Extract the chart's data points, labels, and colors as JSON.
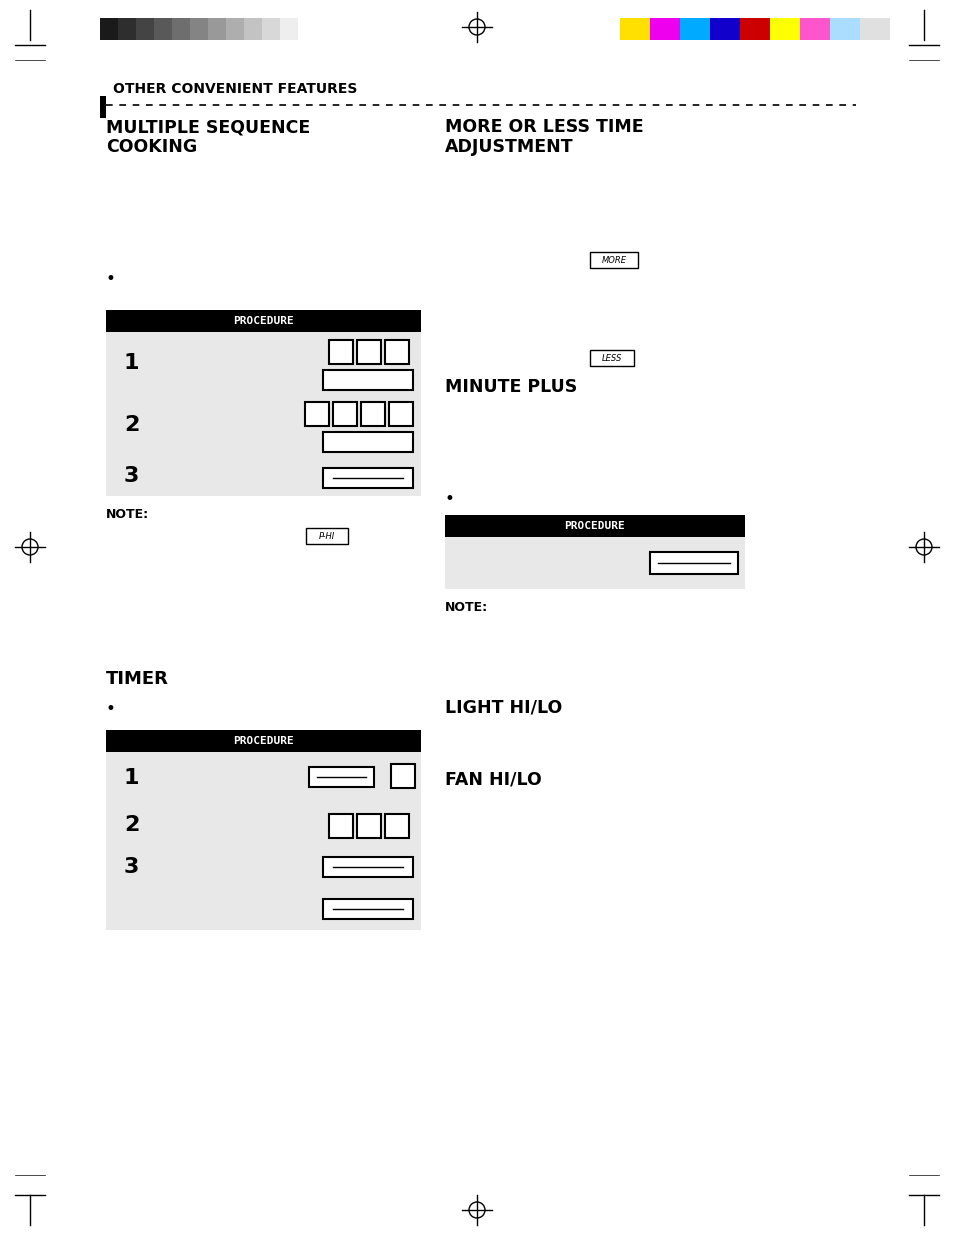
{
  "bg_color": "#ffffff",
  "page_width": 9.54,
  "page_height": 12.35,
  "header_color_bars_bw": [
    "#1a1a1a",
    "#2e2e2e",
    "#444444",
    "#595959",
    "#6e6e6e",
    "#848484",
    "#999999",
    "#aeaeae",
    "#c3c3c3",
    "#d8d8d8",
    "#eeeeee"
  ],
  "header_color_bars_color": [
    "#ffe000",
    "#ee00ee",
    "#00aaff",
    "#1100cc",
    "#cc0000",
    "#ffff00",
    "#ff55cc",
    "#aaddff",
    "#e0e0e0"
  ],
  "section_title": "OTHER CONVENIENT FEATURES",
  "col1_title1": "MULTIPLE SEQUENCE",
  "col1_title2": "COOKING",
  "col2_title1": "MORE OR LESS TIME",
  "col2_title2": "ADJUSTMENT",
  "procedure_bg": "#1a1a1a",
  "procedure_text": "PROCEDURE",
  "row_bg": "#e8e8e8",
  "row_bg_alt": "#f0f0f0",
  "timer_title": "TIMER",
  "light_hilo_title": "LIGHT HI/LO",
  "fan_hilo_title": "FAN HI/LO",
  "minute_plus_title": "MINUTE PLUS",
  "note_label": "NOTE:"
}
